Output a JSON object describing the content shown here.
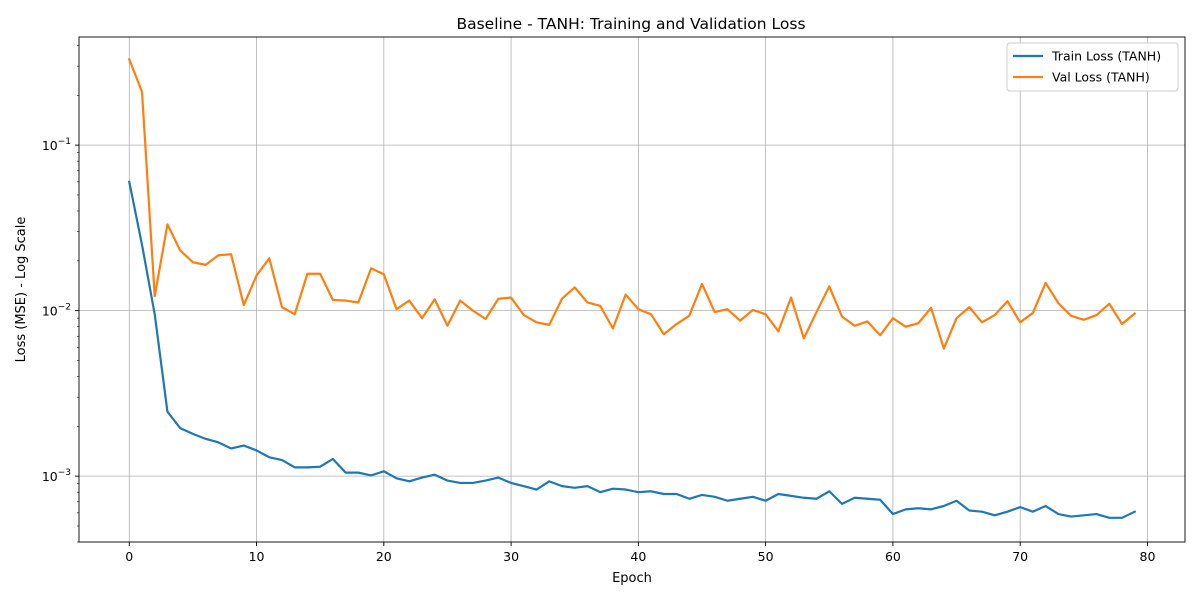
{
  "chart_data": {
    "type": "line",
    "title": "Baseline - TANH: Training and Validation Loss",
    "xlabel": "Epoch",
    "ylabel": "Loss (MSE) - Log Scale",
    "yscale": "log",
    "xlim": [
      -3.95,
      82.95
    ],
    "ylim": [
      0.0004,
      0.45
    ],
    "xticks": [
      0,
      10,
      20,
      30,
      40,
      50,
      60,
      70,
      80
    ],
    "yticks": [
      {
        "value": 0.001,
        "base": "10",
        "exp": "−3"
      },
      {
        "value": 0.01,
        "base": "10",
        "exp": "−2"
      },
      {
        "value": 0.1,
        "base": "10",
        "exp": "−1"
      }
    ],
    "grid": true,
    "legend_position": "top-right",
    "x": [
      0,
      1,
      2,
      3,
      4,
      5,
      6,
      7,
      8,
      9,
      10,
      11,
      12,
      13,
      14,
      15,
      16,
      17,
      18,
      19,
      20,
      21,
      22,
      23,
      24,
      25,
      26,
      27,
      28,
      29,
      30,
      31,
      32,
      33,
      34,
      35,
      36,
      37,
      38,
      39,
      40,
      41,
      42,
      43,
      44,
      45,
      46,
      47,
      48,
      49,
      50,
      51,
      52,
      53,
      54,
      55,
      56,
      57,
      58,
      59,
      60,
      61,
      62,
      63,
      64,
      65,
      66,
      67,
      68,
      69,
      70,
      71,
      72,
      73,
      74,
      75,
      76,
      77,
      78,
      79
    ],
    "series": [
      {
        "name": "Train Loss (TANH)",
        "color": "#1f77b4",
        "values": [
          0.06,
          0.025,
          0.0095,
          0.00245,
          0.00195,
          0.0018,
          0.00168,
          0.0016,
          0.00147,
          0.00153,
          0.00143,
          0.0013,
          0.00125,
          0.00113,
          0.00113,
          0.00114,
          0.00127,
          0.00105,
          0.00105,
          0.00101,
          0.00107,
          0.00097,
          0.00093,
          0.00098,
          0.00102,
          0.00094,
          0.00091,
          0.00091,
          0.00094,
          0.00098,
          0.00091,
          0.00087,
          0.00083,
          0.00093,
          0.00087,
          0.00085,
          0.00087,
          0.0008,
          0.00084,
          0.00083,
          0.0008,
          0.00081,
          0.00078,
          0.00078,
          0.00073,
          0.00077,
          0.00075,
          0.00071,
          0.00073,
          0.00075,
          0.00071,
          0.00078,
          0.00076,
          0.00074,
          0.00073,
          0.00081,
          0.00068,
          0.00074,
          0.00073,
          0.00072,
          0.00059,
          0.00063,
          0.00064,
          0.00063,
          0.00066,
          0.00071,
          0.00062,
          0.00061,
          0.00058,
          0.00061,
          0.00065,
          0.00061,
          0.00066,
          0.00059,
          0.00057,
          0.00058,
          0.00059,
          0.00056,
          0.00056,
          0.00061
        ]
      },
      {
        "name": "Val Loss (TANH)",
        "color": "#ff7f0e",
        "values": [
          0.33,
          0.21,
          0.0122,
          0.0332,
          0.0231,
          0.0196,
          0.0189,
          0.0216,
          0.0219,
          0.0108,
          0.0163,
          0.0207,
          0.0105,
          0.0095,
          0.0167,
          0.0167,
          0.0116,
          0.0115,
          0.0112,
          0.018,
          0.0166,
          0.0102,
          0.0115,
          0.009,
          0.0117,
          0.0081,
          0.0115,
          0.01,
          0.0089,
          0.0118,
          0.012,
          0.0094,
          0.0085,
          0.0082,
          0.0118,
          0.0138,
          0.0112,
          0.0107,
          0.0078,
          0.0125,
          0.0102,
          0.0095,
          0.0072,
          0.0083,
          0.0093,
          0.0145,
          0.0098,
          0.0102,
          0.0087,
          0.0101,
          0.0095,
          0.0075,
          0.012,
          0.0068,
          0.0098,
          0.014,
          0.0092,
          0.0081,
          0.0086,
          0.0071,
          0.009,
          0.008,
          0.0084,
          0.0104,
          0.0059,
          0.009,
          0.0105,
          0.0085,
          0.0094,
          0.0114,
          0.0085,
          0.0097,
          0.0147,
          0.0111,
          0.0093,
          0.0088,
          0.0094,
          0.011,
          0.0083,
          0.0096
        ]
      }
    ]
  }
}
